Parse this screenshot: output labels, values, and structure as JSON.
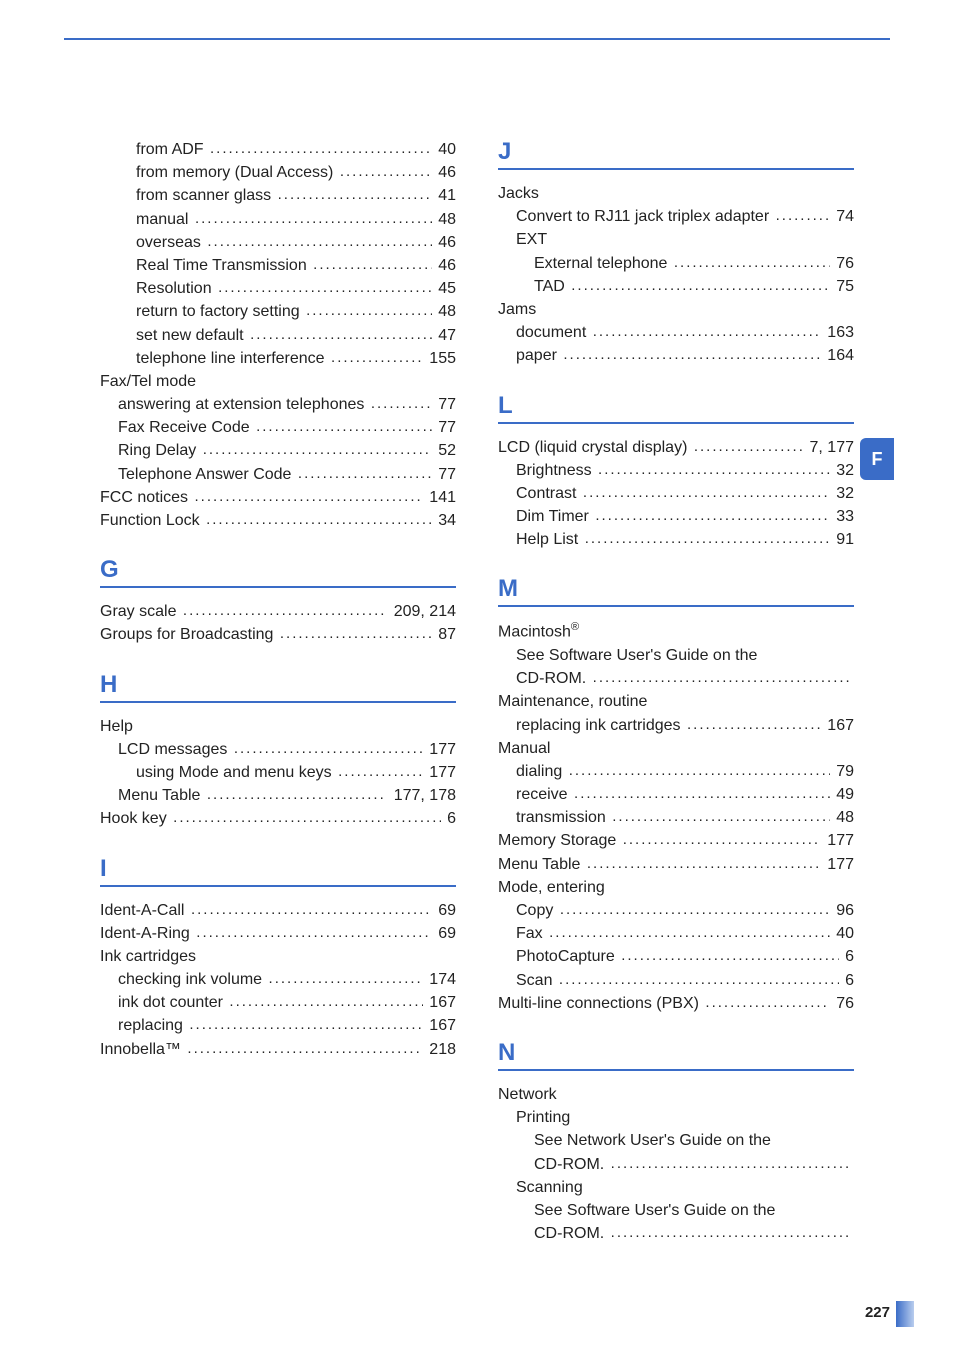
{
  "page_number": "227",
  "side_tab_letter": "F",
  "colors": {
    "accent": "#3a6cc7",
    "text": "#222222",
    "background": "#ffffff"
  },
  "sections": {
    "pre_F": [
      {
        "indent": 2,
        "label": "from ADF",
        "page": "40"
      },
      {
        "indent": 2,
        "label": "from memory (Dual Access)",
        "page": "46"
      },
      {
        "indent": 2,
        "label": "from scanner glass",
        "page": "41"
      },
      {
        "indent": 2,
        "label": "manual",
        "page": "48"
      },
      {
        "indent": 2,
        "label": "overseas",
        "page": "46"
      },
      {
        "indent": 2,
        "label": "Real Time Transmission",
        "page": "46"
      },
      {
        "indent": 2,
        "label": "Resolution",
        "page": "45"
      },
      {
        "indent": 2,
        "label": "return to factory setting",
        "page": "48"
      },
      {
        "indent": 2,
        "label": "set new default",
        "page": "47"
      },
      {
        "indent": 2,
        "label": "telephone line interference",
        "page": "155"
      },
      {
        "indent": 0,
        "label": "Fax/Tel mode",
        "heading": true
      },
      {
        "indent": 1,
        "label": "answering at extension telephones",
        "page": "77"
      },
      {
        "indent": 1,
        "label": "Fax Receive Code",
        "page": "77"
      },
      {
        "indent": 1,
        "label": "Ring Delay",
        "page": "52"
      },
      {
        "indent": 1,
        "label": "Telephone Answer Code",
        "page": "77"
      },
      {
        "indent": 0,
        "label": "FCC notices",
        "page": "141"
      },
      {
        "indent": 0,
        "label": "Function Lock",
        "page": "34"
      }
    ],
    "G": {
      "letter": "G",
      "entries": [
        {
          "indent": 0,
          "label": "Gray scale",
          "page": "209, 214"
        },
        {
          "indent": 0,
          "label": "Groups for Broadcasting",
          "page": "87"
        }
      ]
    },
    "H": {
      "letter": "H",
      "entries": [
        {
          "indent": 0,
          "label": "Help",
          "heading": true
        },
        {
          "indent": 1,
          "label": "LCD messages",
          "page": "177"
        },
        {
          "indent": 2,
          "label": "using Mode and menu keys",
          "page": "177"
        },
        {
          "indent": 1,
          "label": "Menu Table",
          "page": "177, 178"
        },
        {
          "indent": 0,
          "label": "Hook key",
          "page": "6"
        }
      ]
    },
    "I": {
      "letter": "I",
      "entries": [
        {
          "indent": 0,
          "label": "Ident-A-Call",
          "page": "69"
        },
        {
          "indent": 0,
          "label": "Ident-A-Ring",
          "page": "69"
        },
        {
          "indent": 0,
          "label": "Ink cartridges",
          "heading": true
        },
        {
          "indent": 1,
          "label": "checking ink volume",
          "page": "174"
        },
        {
          "indent": 1,
          "label": "ink dot counter",
          "page": "167"
        },
        {
          "indent": 1,
          "label": "replacing",
          "page": "167"
        },
        {
          "indent": 0,
          "label": "Innobella™",
          "page": "218"
        }
      ]
    },
    "J": {
      "letter": "J",
      "entries": [
        {
          "indent": 0,
          "label": "Jacks",
          "heading": true
        },
        {
          "indent": 1,
          "label": "Convert to RJ11 jack triplex adapter",
          "page": "74"
        },
        {
          "indent": 1,
          "label": "EXT",
          "heading": true
        },
        {
          "indent": 2,
          "label": "External telephone",
          "page": "76"
        },
        {
          "indent": 2,
          "label": "TAD",
          "page": "75"
        },
        {
          "indent": 0,
          "label": "Jams",
          "heading": true
        },
        {
          "indent": 1,
          "label": "document",
          "page": "163"
        },
        {
          "indent": 1,
          "label": "paper",
          "page": "164"
        }
      ]
    },
    "L": {
      "letter": "L",
      "entries": [
        {
          "indent": 0,
          "label": "LCD (liquid crystal display)",
          "page": "7, 177"
        },
        {
          "indent": 1,
          "label": "Brightness",
          "page": "32"
        },
        {
          "indent": 1,
          "label": "Contrast",
          "page": "32"
        },
        {
          "indent": 1,
          "label": "Dim Timer",
          "page": "33"
        },
        {
          "indent": 1,
          "label": "Help List",
          "page": "91"
        }
      ]
    },
    "M": {
      "letter": "M",
      "entries": [
        {
          "indent": 0,
          "label_html": "Macintosh<sup>®</sup>",
          "heading": true
        },
        {
          "indent": 1,
          "label": "See Software User's Guide on the",
          "heading": true
        },
        {
          "indent": 1,
          "label": "CD-ROM.",
          "page": "",
          "trailing_dots": true
        },
        {
          "indent": 0,
          "label": "Maintenance, routine",
          "heading": true
        },
        {
          "indent": 1,
          "label": "replacing ink cartridges",
          "page": "167"
        },
        {
          "indent": 0,
          "label": "Manual",
          "heading": true
        },
        {
          "indent": 1,
          "label": "dialing",
          "page": "79"
        },
        {
          "indent": 1,
          "label": "receive",
          "page": "49"
        },
        {
          "indent": 1,
          "label": "transmission",
          "page": "48"
        },
        {
          "indent": 0,
          "label": "Memory Storage",
          "page": "177"
        },
        {
          "indent": 0,
          "label": "Menu Table",
          "page": "177"
        },
        {
          "indent": 0,
          "label": "Mode, entering",
          "heading": true
        },
        {
          "indent": 1,
          "label": "Copy",
          "page": "96"
        },
        {
          "indent": 1,
          "label": "Fax",
          "page": "40"
        },
        {
          "indent": 1,
          "label": "PhotoCapture",
          "page": "6"
        },
        {
          "indent": 1,
          "label": "Scan",
          "page": "6"
        },
        {
          "indent": 0,
          "label": "Multi-line connections (PBX)",
          "page": "76"
        }
      ]
    },
    "N": {
      "letter": "N",
      "entries": [
        {
          "indent": 0,
          "label": "Network",
          "heading": true
        },
        {
          "indent": 1,
          "label": "Printing",
          "heading": true
        },
        {
          "indent": 2,
          "label": "See Network User's Guide on the",
          "heading": true
        },
        {
          "indent": 2,
          "label": "CD-ROM.",
          "page": "",
          "trailing_dots": true
        },
        {
          "indent": 1,
          "label": "Scanning",
          "heading": true
        },
        {
          "indent": 2,
          "label": "See Software User's Guide on the",
          "heading": true
        },
        {
          "indent": 2,
          "label": "CD-ROM.",
          "page": "",
          "trailing_dots": true
        }
      ]
    }
  }
}
